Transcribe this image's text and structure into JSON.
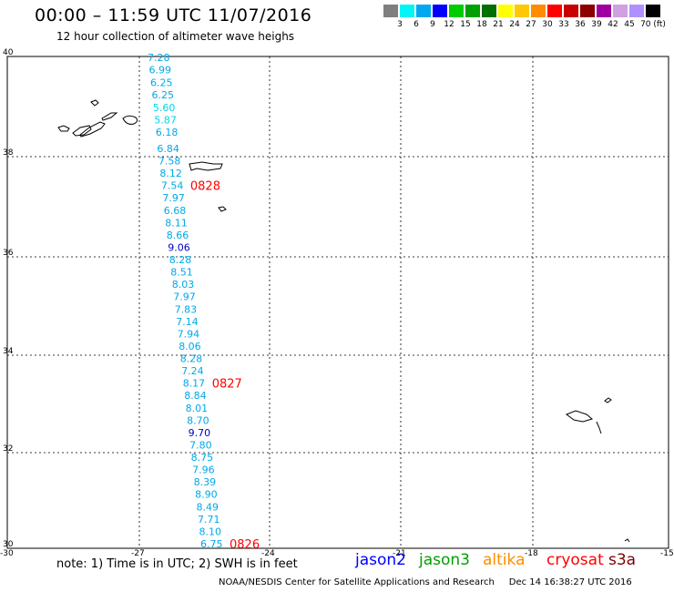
{
  "title": "00:00 – 11:59 UTC 11/07/2016",
  "subtitle": "12 hour collection of altimeter wave heighs",
  "colorbar": {
    "colors": [
      "#7f7f7f",
      "#00f5f5",
      "#00a8f0",
      "#0000ff",
      "#00cc00",
      "#00a000",
      "#007000",
      "#ffff00",
      "#ffc800",
      "#ff8c00",
      "#ff0000",
      "#c80000",
      "#8c0000",
      "#a000a0",
      "#d0a0e0",
      "#b090ff",
      "#000000"
    ],
    "labels": [
      "3",
      "6",
      "9",
      "12",
      "15",
      "18",
      "21",
      "24",
      "27",
      "30",
      "33",
      "36",
      "39",
      "42",
      "45",
      "70 (ft)"
    ]
  },
  "axes": {
    "lat_ticks": [
      "40",
      "38",
      "36",
      "34",
      "32",
      "30"
    ],
    "lon_ticks": [
      "-30",
      "-27",
      "-24",
      "-21",
      "-18",
      "-15"
    ]
  },
  "measurements": [
    {
      "v": "7.28",
      "c": "#00a8e8"
    },
    {
      "v": "6.99",
      "c": "#00a8e8"
    },
    {
      "v": "6.25",
      "c": "#00a8e8"
    },
    {
      "v": "6.25",
      "c": "#00a8e8"
    },
    {
      "v": "5.60",
      "c": "#00d8e8"
    },
    {
      "v": "5.87",
      "c": "#00d8e8"
    },
    {
      "v": "6.18",
      "c": "#00a8e8"
    },
    {
      "v": "6.84",
      "c": "#00a8e8"
    },
    {
      "v": "7.58",
      "c": "#00a8e8"
    },
    {
      "v": "8.12",
      "c": "#00a8e8"
    },
    {
      "v": "7.54",
      "c": "#00a8e8"
    },
    {
      "v": "7.97",
      "c": "#00a8e8"
    },
    {
      "v": "6.68",
      "c": "#00a8e8"
    },
    {
      "v": "8.11",
      "c": "#00a8e8"
    },
    {
      "v": "8.66",
      "c": "#00a8e8"
    },
    {
      "v": "9.06",
      "c": "#0000c0"
    },
    {
      "v": "8.28",
      "c": "#00a8e8"
    },
    {
      "v": "8.51",
      "c": "#00a8e8"
    },
    {
      "v": "8.03",
      "c": "#00a8e8"
    },
    {
      "v": "7.97",
      "c": "#00a8e8"
    },
    {
      "v": "7.83",
      "c": "#00a8e8"
    },
    {
      "v": "7.14",
      "c": "#00a8e8"
    },
    {
      "v": "7.94",
      "c": "#00a8e8"
    },
    {
      "v": "8.06",
      "c": "#00a8e8"
    },
    {
      "v": "8.28",
      "c": "#00a8e8"
    },
    {
      "v": "7.24",
      "c": "#00a8e8"
    },
    {
      "v": "8.17",
      "c": "#00a8e8"
    },
    {
      "v": "8.84",
      "c": "#00a8e8"
    },
    {
      "v": "8.01",
      "c": "#00a8e8"
    },
    {
      "v": "8.70",
      "c": "#00a8e8"
    },
    {
      "v": "9.70",
      "c": "#0000c0"
    },
    {
      "v": "7.80",
      "c": "#00a8e8"
    },
    {
      "v": "8.75",
      "c": "#00a8e8"
    },
    {
      "v": "7.96",
      "c": "#00a8e8"
    },
    {
      "v": "8.39",
      "c": "#00a8e8"
    },
    {
      "v": "8.90",
      "c": "#00a8e8"
    },
    {
      "v": "8.49",
      "c": "#00a8e8"
    },
    {
      "v": "7.71",
      "c": "#00a8e8"
    },
    {
      "v": "8.10",
      "c": "#00a8e8"
    },
    {
      "v": "6.75",
      "c": "#00a8e8"
    }
  ],
  "pass_times": [
    {
      "label": "0828",
      "attach": 10
    },
    {
      "label": "0827",
      "attach": 26
    },
    {
      "label": "0826",
      "attach": 39
    }
  ],
  "footer": {
    "note": "note: 1) Time is in UTC; 2) SWH is in feet",
    "credit": "NOAA/NESDIS Center for Satellite Applications and Research",
    "timestamp": "Dec 14 16:38:27 UTC 2016"
  },
  "satellites": [
    {
      "name": "jason2",
      "color": "#0000ff"
    },
    {
      "name": "jason3",
      "color": "#00a000"
    },
    {
      "name": "altika",
      "color": "#ff8c00"
    },
    {
      "name": "cryosat",
      "color": "#ff0000"
    },
    {
      "name": "s3a",
      "color": "#800000"
    }
  ]
}
